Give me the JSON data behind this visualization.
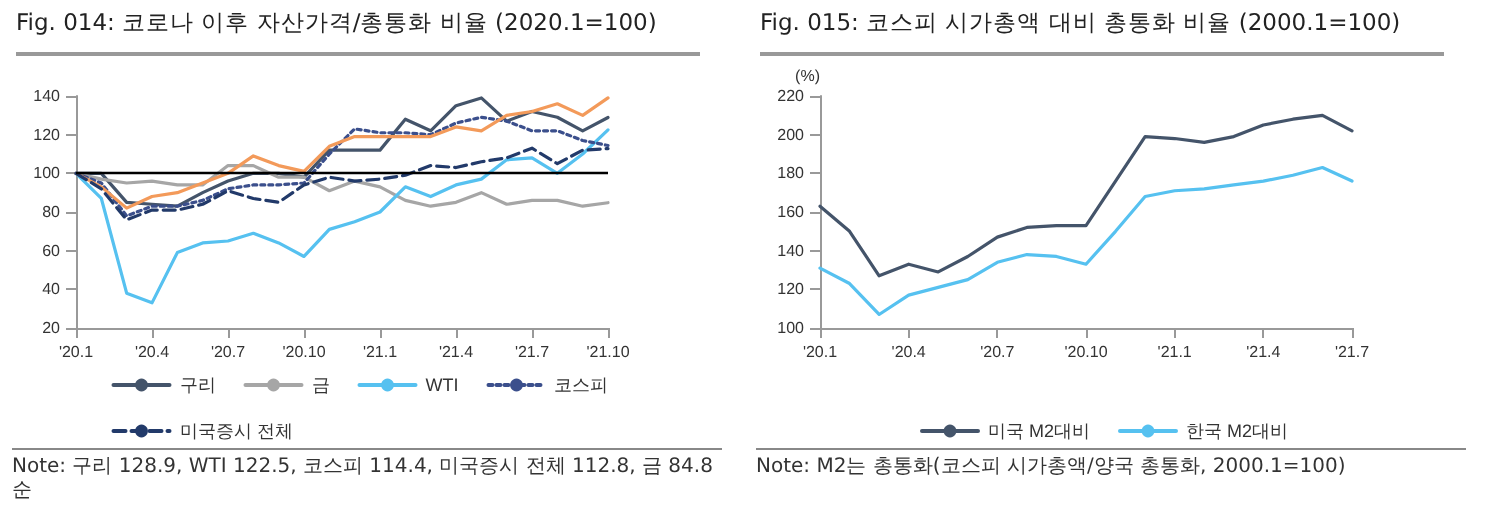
{
  "chart_data": [
    {
      "type": "line",
      "title": "Fig. 014: 코로나  이후 자산가격/총통화 비율 (2020.1=100)",
      "categories": [
        "'20.1",
        null,
        null,
        "'20.4",
        null,
        null,
        "'20.7",
        null,
        null,
        "'20.10",
        null,
        null,
        "'21.1",
        null,
        null,
        "'21.4",
        null,
        null,
        "'21.7",
        null,
        null,
        "'21.10"
      ],
      "series": [
        {
          "name": "구리",
          "color": "#44546a",
          "line_style": "solid",
          "values": [
            100,
            100,
            85,
            84,
            83,
            90,
            96,
            100,
            100,
            98,
            112,
            112,
            112,
            128,
            122,
            135,
            139,
            127,
            132,
            129,
            122,
            128.9
          ]
        },
        {
          "name": "금",
          "color": "#a6a6a6",
          "line_style": "solid",
          "values": [
            100,
            97,
            95,
            96,
            94,
            94,
            104,
            104,
            98,
            98,
            91,
            96,
            93,
            86,
            83,
            85,
            90,
            84,
            86,
            86,
            83,
            84.8
          ]
        },
        {
          "name": "WTI",
          "color": "#56c1f0",
          "line_style": "solid",
          "values": [
            100,
            87,
            38,
            33,
            59,
            64,
            65,
            69,
            64,
            57,
            71,
            75,
            80,
            93,
            88,
            94,
            97,
            107,
            108,
            100,
            110,
            122.5
          ]
        },
        {
          "name": "코스피",
          "color": "#3b4f8c",
          "line_style": "dotted",
          "values": [
            100,
            95,
            78,
            83,
            83,
            86,
            92,
            94,
            94,
            95,
            110,
            123,
            121,
            121,
            120,
            126,
            129,
            127,
            122,
            122,
            117,
            114.4
          ]
        },
        {
          "color": "#f39a5a",
          "line_style": "solid",
          "values": [
            100,
            93,
            82,
            88,
            90,
            95,
            100,
            109,
            104,
            101,
            114,
            119,
            119,
            119,
            119,
            124,
            122,
            130,
            132,
            136,
            130,
            139.0
          ]
        },
        {
          "name": "미국증시 전체",
          "color": "#223a6a",
          "line_style": "dashed",
          "values": [
            100,
            92,
            76,
            81,
            81,
            84,
            91,
            87,
            85,
            94,
            98,
            96,
            97,
            99,
            104,
            103,
            106,
            108,
            113,
            105,
            112,
            112.8
          ]
        }
      ],
      "ylim": [
        20,
        140
      ],
      "yticks": [
        20,
        40,
        60,
        80,
        100,
        120,
        140
      ],
      "grid": false,
      "legend": "bottom",
      "marker": "none",
      "ref_lines": [
        {
          "axis": "y",
          "value": 100,
          "color": "#000000"
        }
      ],
      "annotations": [
        "Note: 구리 128.9, WTI 122.5, 코스피 114.4, 미국증시 전체 112.8, 금 84.8 순"
      ]
    },
    {
      "type": "line",
      "title": "Fig. 015: 코스피 시가총액 대비 총통화 비율 (2000.1=100)",
      "ylabel": "(%)",
      "categories": [
        "'20.1",
        null,
        null,
        "'20.4",
        null,
        null,
        "'20.7",
        null,
        null,
        "'20.10",
        null,
        null,
        "'21.1",
        null,
        null,
        "'21.4",
        null,
        null,
        "'21.7"
      ],
      "series": [
        {
          "name": "미국 M2대비",
          "color": "#44546a",
          "values": [
            163,
            150,
            127,
            133,
            129,
            137,
            147,
            152,
            153,
            153,
            176,
            199,
            198,
            196,
            199,
            205,
            208,
            210,
            202
          ]
        },
        {
          "name": "한국 M2대비",
          "color": "#56c1f0",
          "values": [
            131,
            123,
            107,
            117,
            121,
            125,
            134,
            138,
            137,
            133,
            150,
            168,
            171,
            172,
            174,
            176,
            179,
            183,
            176
          ]
        }
      ],
      "ylim": [
        100,
        220
      ],
      "yticks": [
        100,
        120,
        140,
        160,
        180,
        200,
        220
      ],
      "grid": false,
      "legend": "bottom",
      "marker": "none",
      "annotations": [
        "Note: M2는 총통화(코스피 시가총액/양국 총통화, 2000.1=100)"
      ]
    }
  ]
}
